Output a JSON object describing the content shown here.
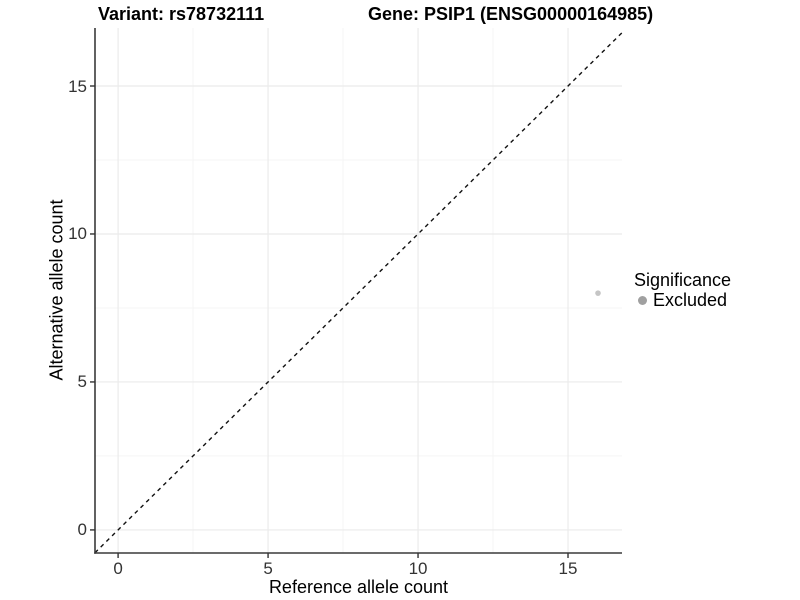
{
  "title": {
    "variant": "Variant: rs78732111",
    "gene": "Gene: PSIP1 (ENSG00000164985)"
  },
  "axes": {
    "x": {
      "label": "Reference allele count"
    },
    "y": {
      "label": "Alternative allele count"
    }
  },
  "legend": {
    "title": "Significance",
    "items": [
      {
        "label": "Excluded",
        "color": "#a0a0a0"
      }
    ]
  },
  "chart_data": {
    "type": "scatter",
    "title": "Variant: rs78732111   Gene: PSIP1 (ENSG00000164985)",
    "xlabel": "Reference allele count",
    "ylabel": "Alternative allele count",
    "xlim": [
      -0.77,
      16.8
    ],
    "ylim": [
      -0.78,
      16.96
    ],
    "x_major_ticks": [
      0,
      5,
      10,
      15
    ],
    "y_major_ticks": [
      0,
      5,
      10,
      15
    ],
    "x_minor_ticks": [
      2.5,
      7.5,
      12.5
    ],
    "y_minor_ticks": [
      2.5,
      7.5,
      12.5
    ],
    "grid": "major+minor",
    "legend_position": "right",
    "series": [
      {
        "name": "Excluded",
        "point_color": "#c5c5c5",
        "point_radius": 2.8,
        "points": [
          {
            "x": 16,
            "y": 8
          }
        ]
      }
    ],
    "reference_line": {
      "type": "identity y=x",
      "style": "dashed",
      "color": "#111111"
    },
    "colors": {
      "grid_major": "#ebebeb",
      "grid_minor": "#f5f5f5",
      "axis_line": "#3a3a3a",
      "tick_mark": "#333333",
      "tick_label": "#333333"
    }
  }
}
